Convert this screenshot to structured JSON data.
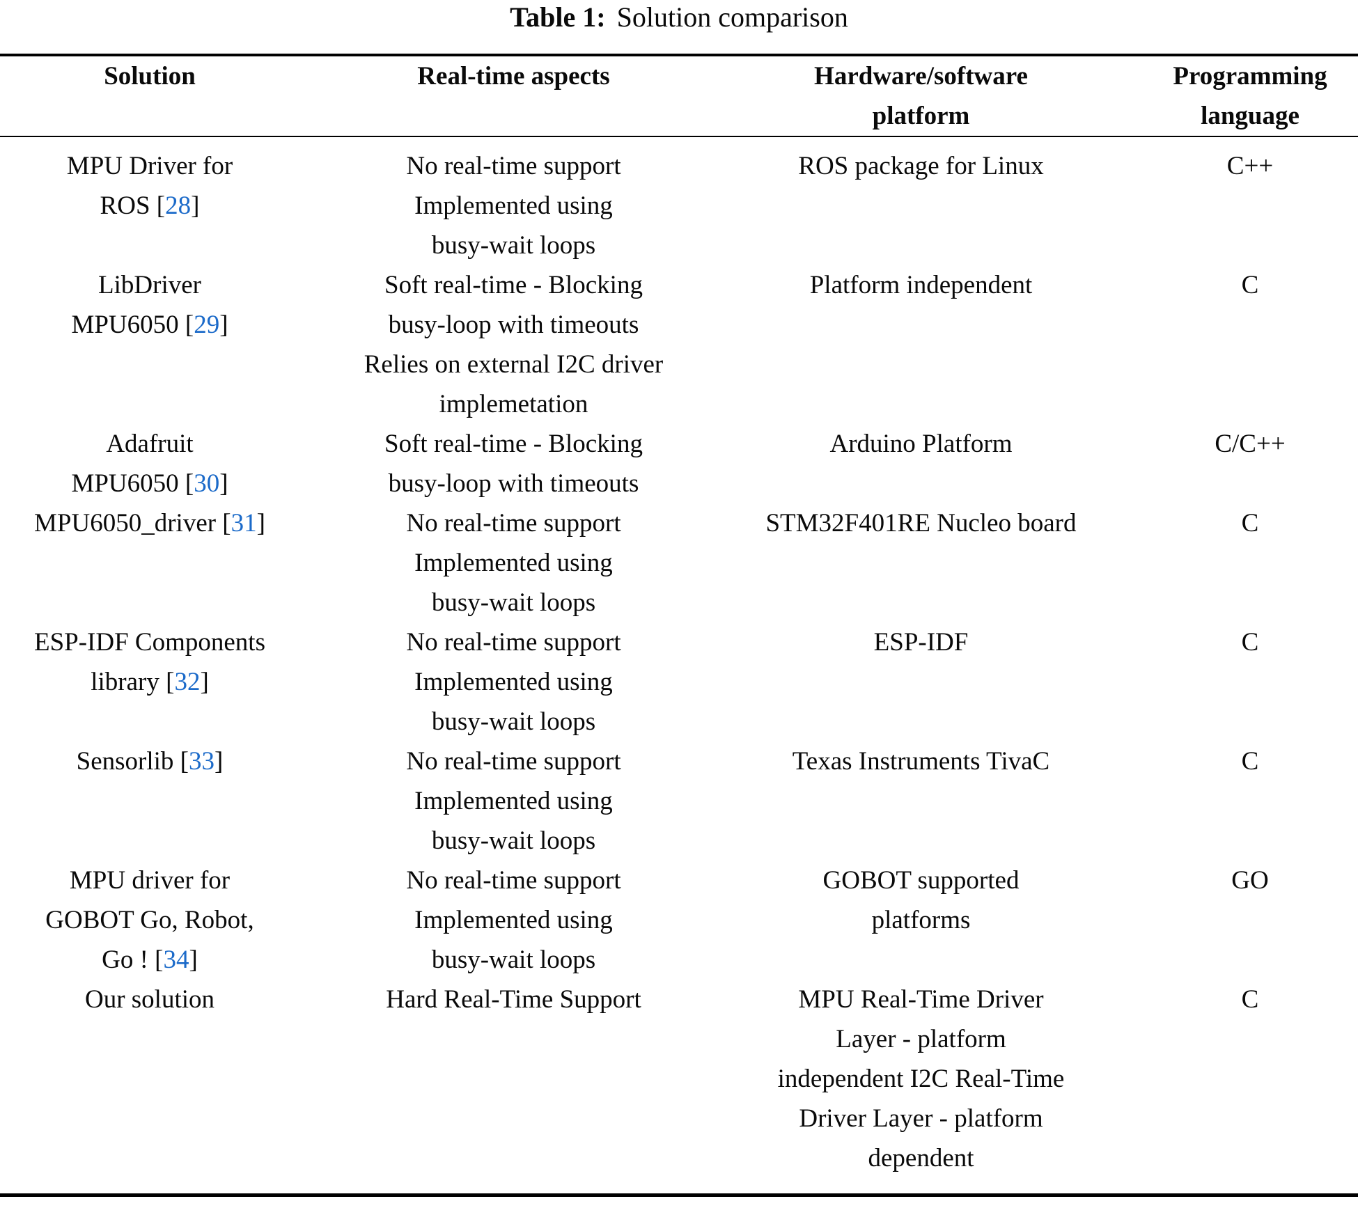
{
  "title": {
    "label": "Table 1:",
    "caption": "Solution comparison"
  },
  "colors": {
    "citation_link": "#1b6ac9",
    "text": "#0a0a0a",
    "rule": "#000000"
  },
  "table": {
    "columns": [
      {
        "key": "solution",
        "lines": [
          "Solution"
        ]
      },
      {
        "key": "realtime",
        "lines": [
          "Real-time aspects"
        ]
      },
      {
        "key": "platform",
        "lines": [
          "Hardware/software",
          "platform"
        ]
      },
      {
        "key": "language",
        "lines": [
          "Programming",
          "language"
        ]
      }
    ],
    "rows": [
      {
        "solution": [
          "MPU Driver for",
          "ROS [28]"
        ],
        "realtime": [
          "No real-time support",
          "Implemented using",
          "busy-wait loops"
        ],
        "platform": [
          "ROS package for Linux"
        ],
        "language": [
          "C++"
        ]
      },
      {
        "solution": [
          "LibDriver",
          "MPU6050 [29]"
        ],
        "realtime": [
          "Soft real-time - Blocking",
          "busy-loop with timeouts",
          "Relies on external I2C driver",
          "implemetation"
        ],
        "platform": [
          "Platform independent"
        ],
        "language": [
          "C"
        ]
      },
      {
        "solution": [
          "Adafruit",
          "MPU6050 [30]"
        ],
        "realtime": [
          "Soft real-time - Blocking",
          "busy-loop with timeouts"
        ],
        "platform": [
          "Arduino Platform"
        ],
        "language": [
          "C/C++"
        ]
      },
      {
        "solution": [
          "MPU6050_driver [31]"
        ],
        "realtime": [
          "No real-time support",
          "Implemented using",
          "busy-wait loops"
        ],
        "platform": [
          "STM32F401RE Nucleo board"
        ],
        "language": [
          "C"
        ]
      },
      {
        "solution": [
          "ESP-IDF Components",
          "library [32]"
        ],
        "realtime": [
          "No real-time support",
          "Implemented using",
          "busy-wait loops"
        ],
        "platform": [
          "ESP-IDF"
        ],
        "language": [
          "C"
        ]
      },
      {
        "solution": [
          "Sensorlib [33]"
        ],
        "realtime": [
          "No real-time support",
          "Implemented using",
          "busy-wait loops"
        ],
        "platform": [
          "Texas Instruments TivaC"
        ],
        "language": [
          "C"
        ]
      },
      {
        "solution": [
          "MPU driver for",
          "GOBOT Go, Robot,",
          "Go ! [34]"
        ],
        "realtime": [
          "No real-time support",
          "Implemented using",
          "busy-wait loops"
        ],
        "platform": [
          "GOBOT supported",
          "platforms"
        ],
        "language": [
          "GO"
        ]
      },
      {
        "solution": [
          "Our solution"
        ],
        "realtime": [
          "Hard Real-Time Support"
        ],
        "platform": [
          "MPU Real-Time Driver",
          "Layer - platform",
          "independent I2C Real-Time",
          "Driver Layer - platform",
          "dependent"
        ],
        "language": [
          "C"
        ]
      }
    ]
  }
}
